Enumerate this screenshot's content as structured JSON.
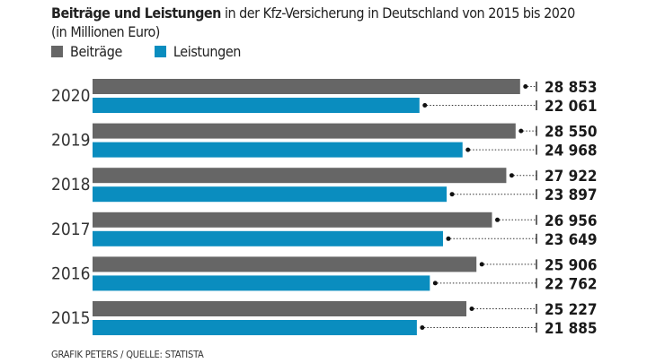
{
  "chart_data": {
    "type": "bar",
    "orientation": "horizontal",
    "title_bold": "Beiträge und Leistungen",
    "title_rest": " in der Kfz-Versicherung in Deutschland von 2015 bis 2020 (in Millionen Euro)",
    "categories": [
      "2020",
      "2019",
      "2018",
      "2017",
      "2016",
      "2015"
    ],
    "series": [
      {
        "name": "Beiträge",
        "color": "#666666",
        "values": [
          28853,
          28550,
          27922,
          26956,
          25906,
          25227
        ],
        "labels": [
          "28 853",
          "28 550",
          "27 922",
          "26 956",
          "25 906",
          "25 227"
        ]
      },
      {
        "name": "Leistungen",
        "color": "#0a8dbf",
        "values": [
          22061,
          24968,
          23897,
          23649,
          22762,
          21885
        ],
        "labels": [
          "22 061",
          "24 968",
          "23 897",
          "23 649",
          "22 762",
          "21 885"
        ]
      }
    ],
    "legend": "top-left",
    "grid": false,
    "xlim": [
      0,
      30000
    ],
    "source": "GRAFIK PETERS / QUELLE: STATISTA"
  }
}
